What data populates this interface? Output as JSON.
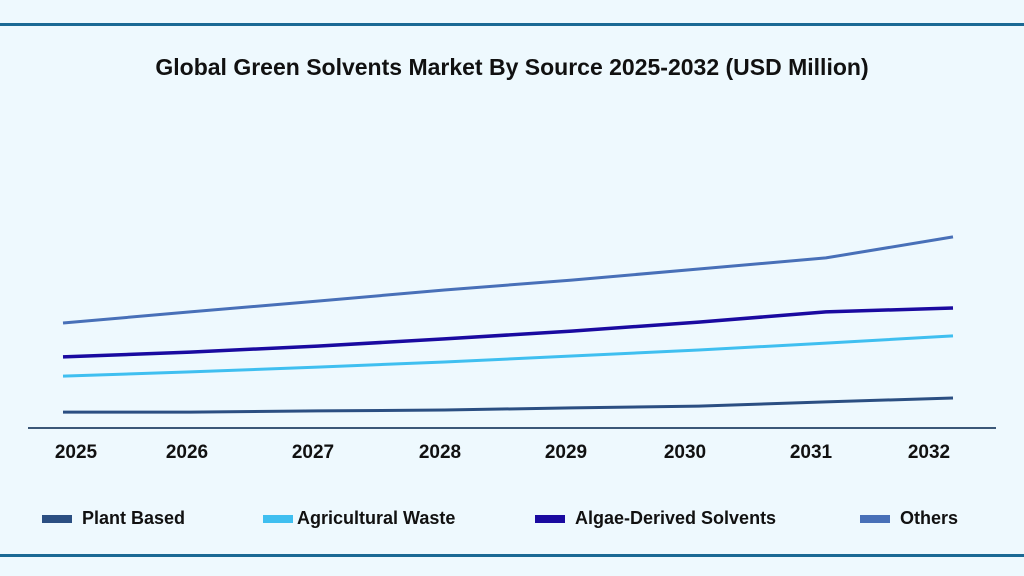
{
  "chart_data": {
    "type": "line",
    "title": "Global Green Solvents Market By Source 2025-2032 (USD Million)",
    "xlabel": "",
    "ylabel": "",
    "categories": [
      "2025",
      "2026",
      "2027",
      "2028",
      "2029",
      "2030",
      "2031",
      "2032"
    ],
    "ylim": [
      0,
      100
    ],
    "grid": false,
    "legend_position": "bottom",
    "series": [
      {
        "name": "Plant Based",
        "color": "#2b4f82",
        "values": [
          5.3,
          5.3,
          5.7,
          6.0,
          6.7,
          7.3,
          8.7,
          10.0
        ]
      },
      {
        "name": "Agricultural Waste",
        "color": "#3fbff0",
        "values": [
          17.3,
          18.7,
          20.3,
          22.0,
          24.0,
          26.0,
          28.3,
          30.7
        ]
      },
      {
        "name": "Algae-Derived Solvents",
        "color": "#1a0aa0",
        "values": [
          23.7,
          25.3,
          27.3,
          29.7,
          32.3,
          35.3,
          38.7,
          40.0
        ]
      },
      {
        "name": "Others",
        "color": "#4870b8",
        "values": [
          35.0,
          38.7,
          42.3,
          46.0,
          49.3,
          53.0,
          56.7,
          63.7
        ]
      }
    ]
  }
}
